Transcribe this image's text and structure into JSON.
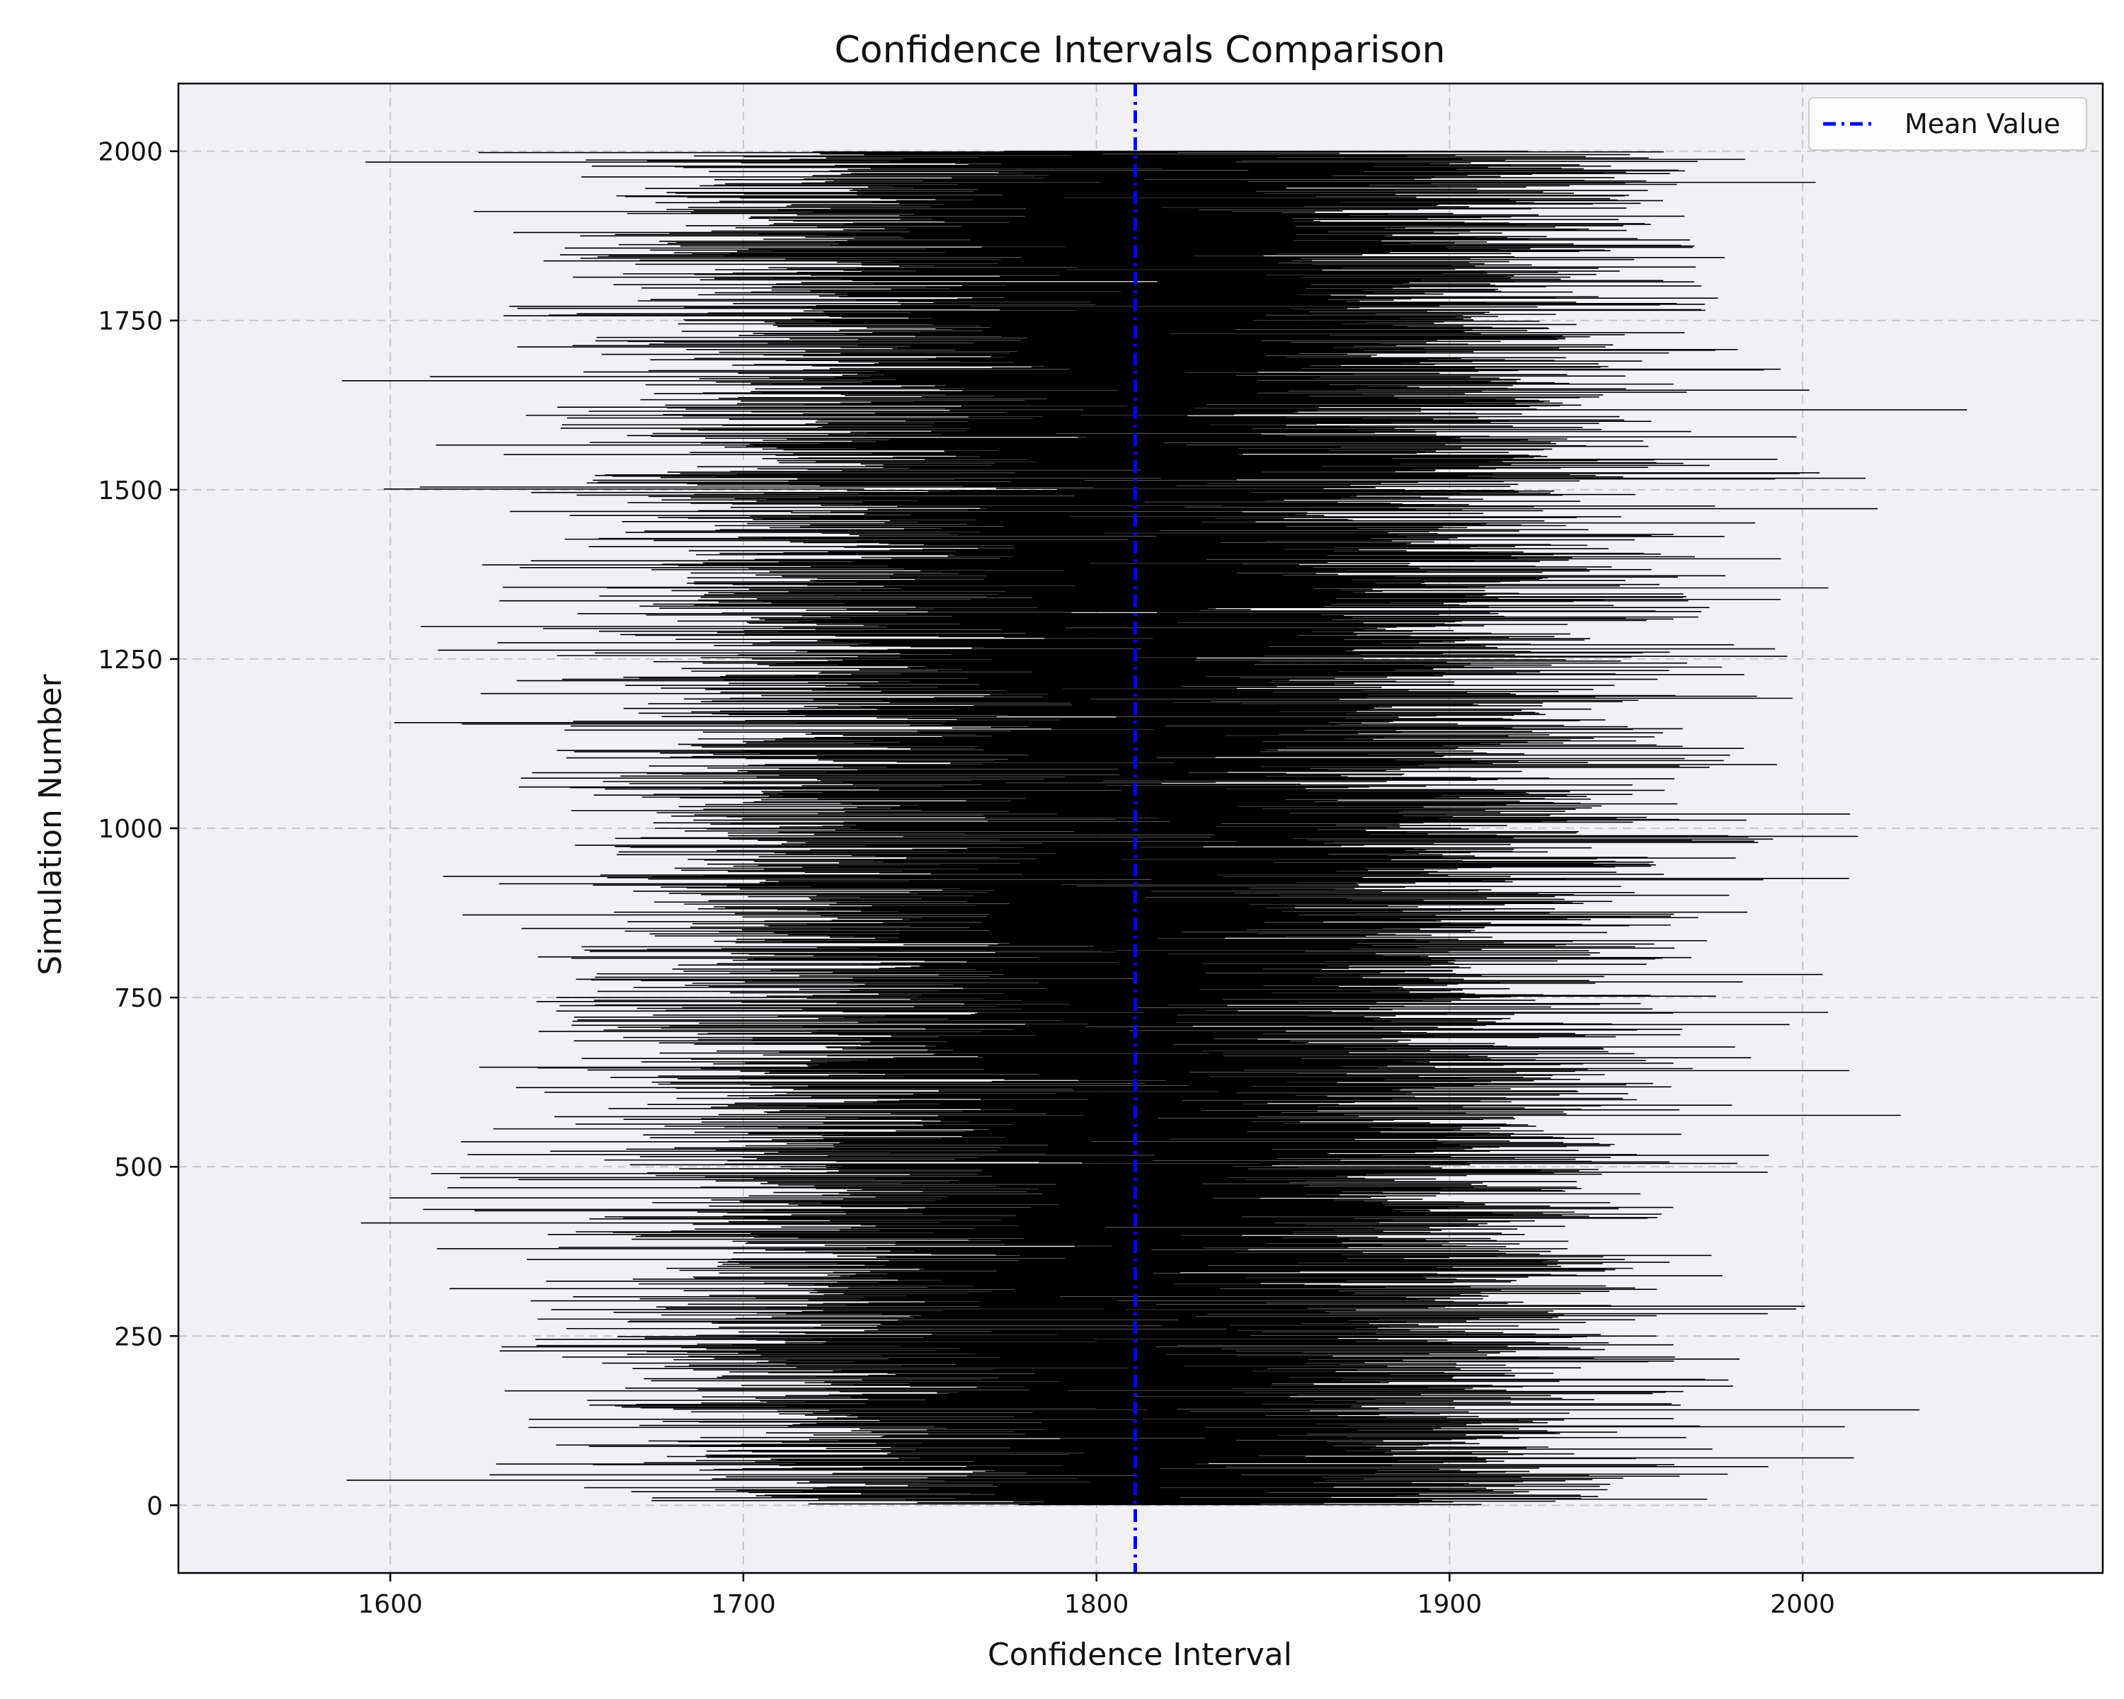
{
  "chart_data": {
    "type": "interval",
    "title": "Confidence Intervals Comparison",
    "xlabel": "Confidence Interval",
    "ylabel": "Simulation Number",
    "xlim": [
      1540,
      2085
    ],
    "ylim": [
      -100,
      2100
    ],
    "x_ticks": [
      1600,
      1700,
      1800,
      1900,
      2000
    ],
    "y_ticks": [
      0,
      250,
      500,
      750,
      1000,
      1250,
      1500,
      1750,
      2000
    ],
    "grid": true,
    "background_color": "#f0f0f5",
    "interval_color": "#000000",
    "mean_line": {
      "value": 1811,
      "color": "#0000ff",
      "style": "dash-dot"
    },
    "legend": {
      "position": "top-right",
      "entries": [
        {
          "label": "Mean Value",
          "color": "#0000ff"
        }
      ]
    },
    "intervals": {
      "count": 2000,
      "first_simulation": 1,
      "last_simulation": 2000,
      "center": 1811,
      "typical_half_width": 90,
      "half_width_spread": 25,
      "center_spread": 35,
      "min_lower": 1565,
      "max_upper": 2060
    }
  }
}
